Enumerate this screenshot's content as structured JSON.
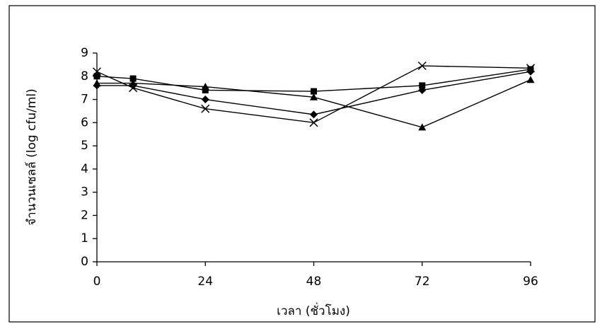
{
  "chart_data": {
    "type": "line",
    "x_label": "เวลา (ชั่วโมง)",
    "y_label": "จำนวนเซลล์ (log cfu/ml)",
    "x": [
      0,
      8,
      24,
      48,
      72,
      96
    ],
    "xlim": [
      0,
      96
    ],
    "xticks": [
      0,
      24,
      48,
      72,
      96
    ],
    "ylim": [
      0,
      9
    ],
    "yticks": [
      0,
      1,
      2,
      3,
      4,
      5,
      6,
      7,
      8,
      9
    ],
    "grid": false,
    "series": [
      {
        "color": "#000000",
        "marker": "diamond",
        "values": [
          7.6,
          7.6,
          7.0,
          6.35,
          7.4,
          8.2
        ]
      },
      {
        "color": "#000000",
        "marker": "square",
        "values": [
          8.0,
          7.9,
          7.4,
          7.35,
          7.6,
          8.3
        ]
      },
      {
        "color": "#000000",
        "marker": "triangle",
        "values": [
          7.7,
          7.7,
          7.55,
          7.1,
          5.8,
          7.85
        ]
      },
      {
        "color": "#000000",
        "marker": "x",
        "values": [
          8.2,
          7.5,
          6.6,
          6.0,
          8.45,
          8.35
        ]
      }
    ]
  }
}
